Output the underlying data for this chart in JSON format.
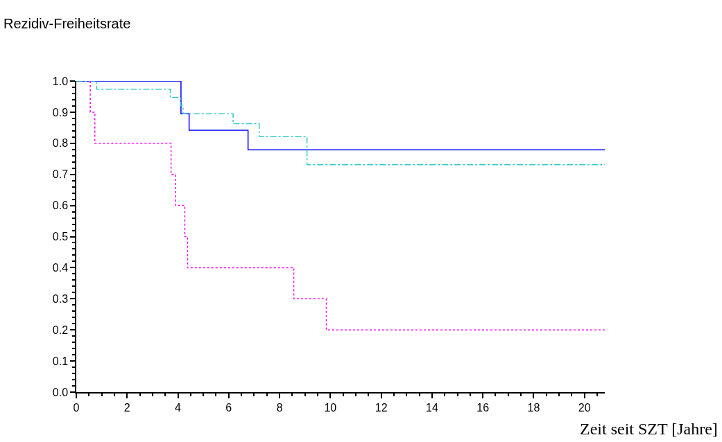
{
  "chart_data": {
    "type": "step",
    "ylabel": "Rezidiv-Freiheitsrate",
    "xlabel": "Zeit seit SZT [Jahre]",
    "xlim": [
      0,
      20.8
    ],
    "xticks": [
      0,
      2,
      4,
      6,
      8,
      10,
      12,
      14,
      16,
      18,
      20
    ],
    "ylim": [
      0,
      1
    ],
    "yticks": [
      {
        "value": 0,
        "label": "0.0"
      },
      0.1,
      0.2,
      0.3,
      0.4,
      0.5,
      0.6,
      0.7,
      0.8,
      0.9,
      {
        "value": 1,
        "label": "1.0"
      }
    ],
    "marker": "none",
    "series": [
      {
        "color": "#0000ff",
        "line_style": "solid",
        "x": [
          0,
          4.12,
          4.44,
          6.76,
          20.8
        ],
        "values": [
          1.0,
          0.895,
          0.842,
          0.779,
          0.779
        ]
      },
      {
        "color": "#33cccc",
        "line_style": "dashed",
        "x": [
          0,
          0.8,
          3.7,
          4.1,
          4.2,
          6.17,
          7.2,
          9.08,
          20.8
        ],
        "values": [
          1.0,
          0.974,
          0.947,
          0.921,
          0.895,
          0.863,
          0.821,
          0.731,
          0.731
        ]
      },
      {
        "color": "#ff00ff",
        "line_style": "dotted",
        "x": [
          0.55,
          0.55,
          0.73,
          3.73,
          3.91,
          4.27,
          4.38,
          8.56,
          9.84,
          20.8
        ],
        "values": [
          1.0,
          0.9,
          0.8,
          0.7,
          0.6,
          0.5,
          0.4,
          0.3,
          0.2,
          0.2
        ]
      }
    ]
  }
}
